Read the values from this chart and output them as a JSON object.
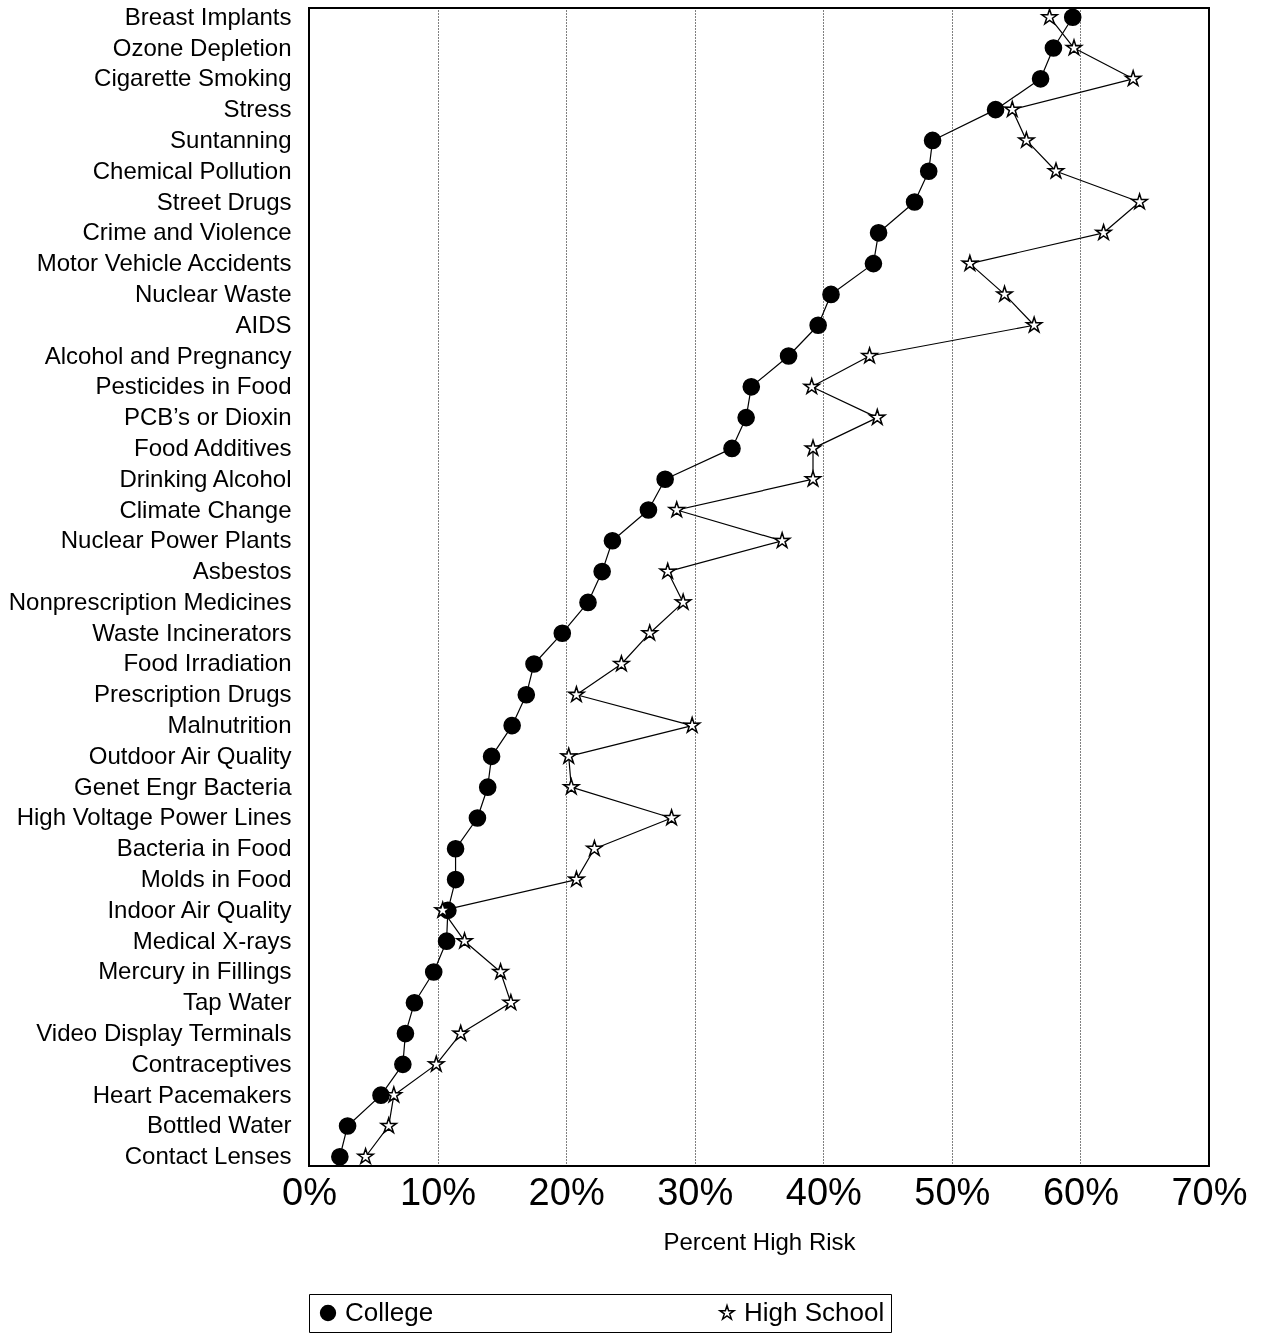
{
  "chart_data": {
    "type": "line",
    "orientation": "horizontal",
    "xlabel": "Percent High Risk",
    "categories": [
      "Breast Implants",
      "Ozone Depletion",
      "Cigarette Smoking",
      "Stress",
      "Suntanning",
      "Chemical Pollution",
      "Street Drugs",
      "Crime and Violence",
      "Motor Vehicle Accidents",
      "Nuclear Waste",
      "AIDS",
      "Alcohol and Pregnancy",
      "Pesticides in Food",
      "PCB’s or Dioxin",
      "Food Additives",
      "Drinking Alcohol",
      "Climate Change",
      "Nuclear Power Plants",
      "Asbestos",
      "Nonprescription Medicines",
      "Waste Incinerators",
      "Food Irradiation",
      "Prescription Drugs",
      "Malnutrition",
      "Outdoor Air Quality",
      "Genet Engr Bacteria",
      "High Voltage Power Lines",
      "Bacteria in Food",
      "Molds in Food",
      "Indoor Air Quality",
      "Medical X-rays",
      "Mercury in Fillings",
      "Tap Water",
      "Video Display Terminals",
      "Contraceptives",
      "Heart Pacemakers",
      "Bottled Water",
      "Contact Lenses"
    ],
    "series": [
      {
        "name": "College",
        "color": "#000000",
        "marker": "circle",
        "values": [
          59.4,
          57.9,
          56.9,
          53.4,
          48.5,
          48.2,
          47.1,
          44.3,
          43.9,
          40.6,
          39.6,
          37.3,
          34.4,
          34.0,
          32.9,
          27.7,
          26.4,
          23.6,
          22.8,
          21.7,
          19.7,
          17.5,
          16.9,
          15.8,
          14.2,
          13.9,
          13.1,
          11.4,
          11.4,
          10.8,
          10.7,
          9.7,
          8.2,
          7.5,
          7.3,
          5.6,
          3.0,
          2.4
        ]
      },
      {
        "name": "High School",
        "color": "#000000",
        "marker": "star",
        "values": [
          57.6,
          59.5,
          64.1,
          54.7,
          55.8,
          58.1,
          64.6,
          61.8,
          51.4,
          54.1,
          56.4,
          43.6,
          39.1,
          44.2,
          39.2,
          39.2,
          28.6,
          36.8,
          27.9,
          29.1,
          26.5,
          24.3,
          20.8,
          29.8,
          20.2,
          20.4,
          28.2,
          22.2,
          20.8,
          10.4,
          12.1,
          14.9,
          15.7,
          11.8,
          9.9,
          6.6,
          6.2,
          4.4
        ]
      }
    ],
    "xlim": [
      0,
      70
    ],
    "xticks": [
      {
        "value": 0,
        "label": "0%"
      },
      {
        "value": 10,
        "label": "10%"
      },
      {
        "value": 20,
        "label": "20%"
      },
      {
        "value": 30,
        "label": "30%"
      },
      {
        "value": 40,
        "label": "40%"
      },
      {
        "value": 50,
        "label": "50%"
      },
      {
        "value": 60,
        "label": "60%"
      },
      {
        "value": 70,
        "label": "70%"
      }
    ],
    "grid": "x",
    "legend": "bottom",
    "line_style": "solid"
  }
}
